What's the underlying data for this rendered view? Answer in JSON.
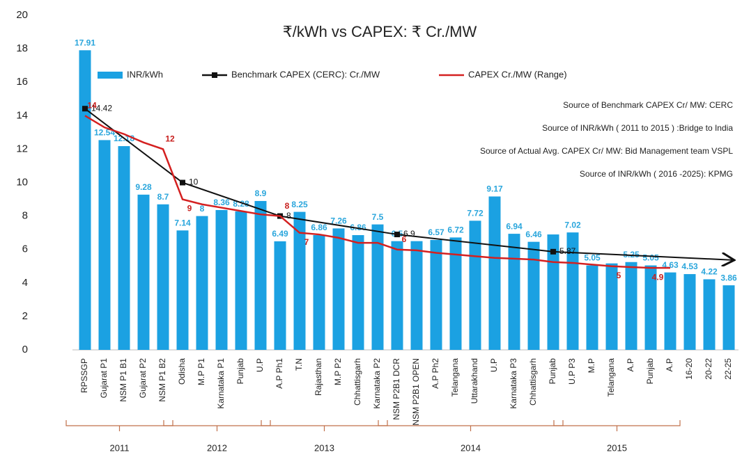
{
  "chart_data": {
    "type": "bar",
    "title": "₹/kWh vs CAPEX: ₹ Cr./MW",
    "categories": [
      "RPSSGP",
      "Gujarat P1",
      "NSM P1 B1",
      "Gujarat P2",
      "NSM P1 B2",
      "Odisha",
      "M.P P1",
      "Karnataka P1",
      "Punjab",
      "U.P",
      "A.P Ph1",
      "T.N",
      "Rajasthan",
      "M.P P2",
      "Chhattisgarh",
      "Karnataka P2",
      "NSM P2B1 DCR",
      "NSM P2B1 OPEN",
      "A.P Ph2",
      "Telangana",
      "Uttarakhand",
      "U.P",
      "Karnataka P3",
      "Chhattisgarh",
      "Punjab",
      "U.P P3",
      "M.P",
      "Telangana",
      "A.P",
      "Punjab",
      "A.P",
      "16-20",
      "20-22",
      "22-25"
    ],
    "series": [
      {
        "name": "INR/kWh",
        "type": "bar",
        "color": "#1ba1e2",
        "values": [
          17.91,
          12.54,
          12.18,
          9.28,
          8.7,
          7.14,
          8,
          8.36,
          8.28,
          8.9,
          6.49,
          8.25,
          6.86,
          7.26,
          6.86,
          7.5,
          6.5,
          6.5,
          6.57,
          6.72,
          7.72,
          9.17,
          6.94,
          6.46,
          6.9,
          7.02,
          5.05,
          5.17,
          5.25,
          5.05,
          4.63,
          4.53,
          4.22,
          3.86
        ],
        "value_labels": [
          "17.91",
          "12.54",
          "12.18",
          "9.28",
          "8.7",
          "7.14",
          "8",
          "8.36",
          "8.28",
          "8.9",
          "6.49",
          "8.25",
          "6.86",
          "7.26",
          "6.86",
          "7.5",
          "6.5",
          null,
          "6.57",
          "6.72",
          "7.72",
          "9.17",
          "6.94",
          "6.46",
          null,
          "7.02",
          "5.05",
          null,
          "5.25",
          "5.05",
          "4.63",
          "4.53",
          "4.22",
          "3.86"
        ]
      },
      {
        "name": "Benchmark CAPEX (CERC):  Cr./MW",
        "type": "marker-line",
        "color": "#111111",
        "values": [
          14.42,
          null,
          null,
          null,
          null,
          10,
          null,
          null,
          null,
          null,
          8,
          null,
          null,
          null,
          null,
          null,
          6.9,
          null,
          null,
          null,
          null,
          null,
          null,
          null,
          5.87,
          null,
          null,
          null,
          null,
          null,
          null,
          null,
          null,
          null
        ],
        "value_labels": [
          "14.42",
          null,
          null,
          null,
          null,
          "10",
          null,
          null,
          null,
          null,
          "8",
          null,
          null,
          null,
          null,
          null,
          "6.9",
          null,
          null,
          null,
          null,
          null,
          null,
          null,
          "5.87",
          null,
          null,
          null,
          null,
          null,
          null,
          null,
          null,
          null
        ]
      },
      {
        "name": "CAPEX Cr./MW (Range)",
        "type": "line",
        "color": "#d42020",
        "values": [
          14,
          13.3,
          12.9,
          12.4,
          12,
          9,
          8.7,
          8.5,
          8.3,
          8.1,
          8,
          7,
          6.9,
          6.7,
          6.4,
          6.4,
          6,
          5.95,
          5.8,
          5.7,
          5.6,
          5.5,
          5.45,
          5.4,
          5.25,
          5.2,
          5.1,
          5,
          4.95,
          4.9,
          4.9,
          null,
          null,
          null
        ],
        "value_labels": [
          "14",
          null,
          null,
          null,
          "12",
          "9",
          null,
          null,
          null,
          null,
          "8",
          "7",
          null,
          null,
          null,
          null,
          "6",
          null,
          null,
          null,
          null,
          null,
          null,
          null,
          null,
          null,
          null,
          "5",
          null,
          "4.9",
          null,
          null,
          null,
          null
        ]
      }
    ],
    "ylim": [
      0,
      20
    ],
    "yticks": [
      0,
      2,
      4,
      6,
      8,
      10,
      12,
      14,
      16,
      18,
      20
    ],
    "grid": false,
    "year_groups": [
      {
        "label": "2011",
        "span": 5
      },
      {
        "label": "2012",
        "span": 5
      },
      {
        "label": "2013",
        "span": 6
      },
      {
        "label": "2014",
        "span": 9
      },
      {
        "label": "2015",
        "span": 6
      }
    ],
    "notes": [
      "Source of Benchmark CAPEX Cr/ MW: CERC",
      "Source of INR/kWh  ( 2011 to 2015 ) :Bridge to India",
      "Source of Actual Avg. CAPEX  Cr/ MW:  Bid Management team VSPL",
      "Source of INR/kWh ( 2016 -2025): KPMG"
    ]
  }
}
